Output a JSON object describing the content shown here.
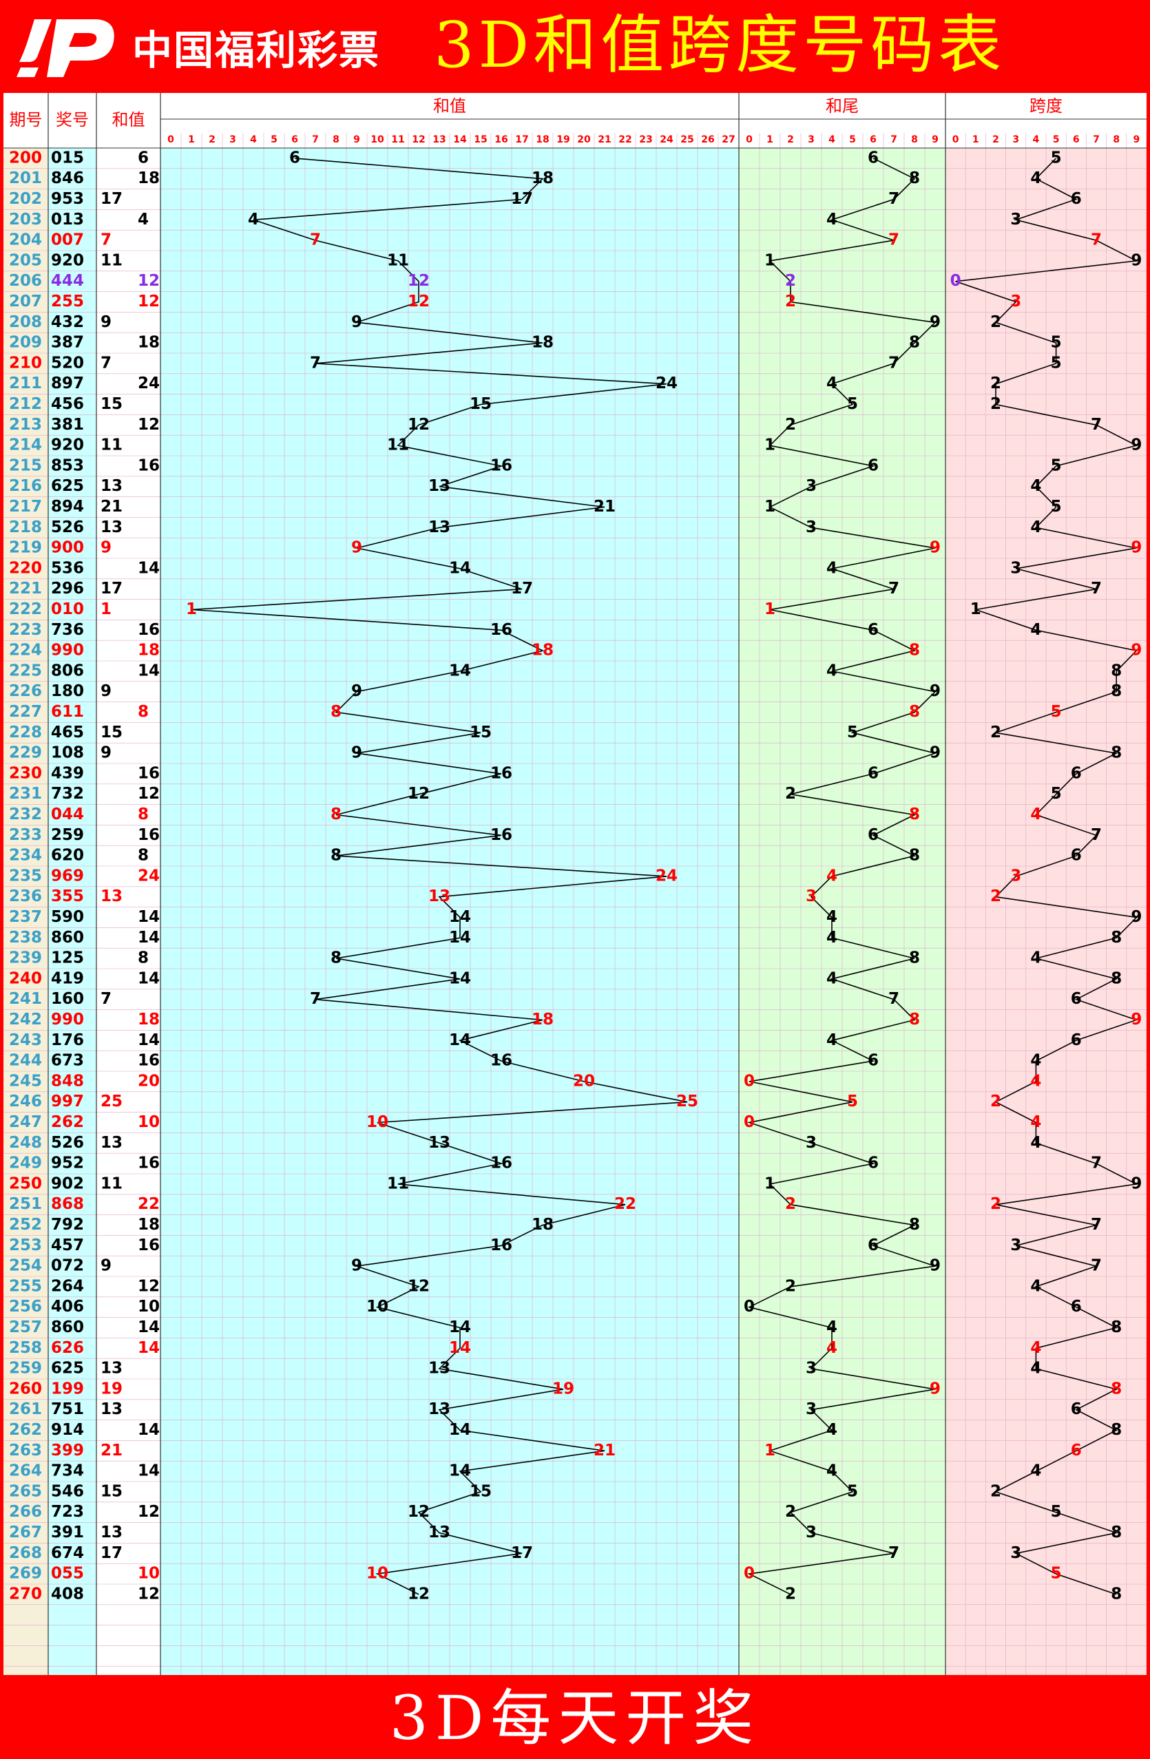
{
  "header": {
    "logo_text": "中国福利彩票",
    "title": "3D和值跨度号码表"
  },
  "footer": {
    "text": "3D每天开奖"
  },
  "table": {
    "col_period": "期号",
    "col_number": "奖号",
    "col_sum": "和值",
    "section_sum": "和值",
    "section_tail": "和尾",
    "section_span": "跨度"
  },
  "colors": {
    "header_bg": "#ff0000",
    "title_text": "#ffff00",
    "period_col_bg": "#f7f0d8",
    "number_col_bg": "#ccffff",
    "sum_area_bg": "#c8ffff",
    "tail_area_bg": "#dcffd8",
    "span_area_bg": "#ffe0e0",
    "highlight_red": "#ff0000",
    "highlight_purple": "#8a2be2",
    "period_blue": "#3aa0c8"
  },
  "chart_data": {
    "type": "table",
    "sum_axis": [
      0,
      27
    ],
    "tail_axis": [
      0,
      9
    ],
    "span_axis": [
      0,
      9
    ],
    "rows": [
      {
        "period": "200",
        "number": "015",
        "sum": 6,
        "tail": 6,
        "span": 5
      },
      {
        "period": "201",
        "number": "846",
        "sum": 18,
        "tail": 8,
        "span": 4
      },
      {
        "period": "202",
        "number": "953",
        "sum": 17,
        "tail": 7,
        "span": 6
      },
      {
        "period": "203",
        "number": "013",
        "sum": 4,
        "tail": 4,
        "span": 3
      },
      {
        "period": "204",
        "number": "007",
        "sum": 7,
        "tail": 7,
        "span": 7
      },
      {
        "period": "205",
        "number": "920",
        "sum": 11,
        "tail": 1,
        "span": 9
      },
      {
        "period": "206",
        "number": "444",
        "sum": 12,
        "tail": 2,
        "span": 0
      },
      {
        "period": "207",
        "number": "255",
        "sum": 12,
        "tail": 2,
        "span": 3
      },
      {
        "period": "208",
        "number": "432",
        "sum": 9,
        "tail": 9,
        "span": 2
      },
      {
        "period": "209",
        "number": "387",
        "sum": 18,
        "tail": 8,
        "span": 5
      },
      {
        "period": "210",
        "number": "520",
        "sum": 7,
        "tail": 7,
        "span": 5
      },
      {
        "period": "211",
        "number": "897",
        "sum": 24,
        "tail": 4,
        "span": 2
      },
      {
        "period": "212",
        "number": "456",
        "sum": 15,
        "tail": 5,
        "span": 2
      },
      {
        "period": "213",
        "number": "381",
        "sum": 12,
        "tail": 2,
        "span": 7
      },
      {
        "period": "214",
        "number": "920",
        "sum": 11,
        "tail": 1,
        "span": 9
      },
      {
        "period": "215",
        "number": "853",
        "sum": 16,
        "tail": 6,
        "span": 5
      },
      {
        "period": "216",
        "number": "625",
        "sum": 13,
        "tail": 3,
        "span": 4
      },
      {
        "period": "217",
        "number": "894",
        "sum": 21,
        "tail": 1,
        "span": 5
      },
      {
        "period": "218",
        "number": "526",
        "sum": 13,
        "tail": 3,
        "span": 4
      },
      {
        "period": "219",
        "number": "900",
        "sum": 9,
        "tail": 9,
        "span": 9
      },
      {
        "period": "220",
        "number": "536",
        "sum": 14,
        "tail": 4,
        "span": 3
      },
      {
        "period": "221",
        "number": "296",
        "sum": 17,
        "tail": 7,
        "span": 7
      },
      {
        "period": "222",
        "number": "010",
        "sum": 1,
        "tail": 1,
        "span": 1
      },
      {
        "period": "223",
        "number": "736",
        "sum": 16,
        "tail": 6,
        "span": 4
      },
      {
        "period": "224",
        "number": "990",
        "sum": 18,
        "tail": 8,
        "span": 9
      },
      {
        "period": "225",
        "number": "806",
        "sum": 14,
        "tail": 4,
        "span": 8
      },
      {
        "period": "226",
        "number": "180",
        "sum": 9,
        "tail": 9,
        "span": 8
      },
      {
        "period": "227",
        "number": "611",
        "sum": 8,
        "tail": 8,
        "span": 5
      },
      {
        "period": "228",
        "number": "465",
        "sum": 15,
        "tail": 5,
        "span": 2
      },
      {
        "period": "229",
        "number": "108",
        "sum": 9,
        "tail": 9,
        "span": 8
      },
      {
        "period": "230",
        "number": "439",
        "sum": 16,
        "tail": 6,
        "span": 6
      },
      {
        "period": "231",
        "number": "732",
        "sum": 12,
        "tail": 2,
        "span": 5
      },
      {
        "period": "232",
        "number": "044",
        "sum": 8,
        "tail": 8,
        "span": 4
      },
      {
        "period": "233",
        "number": "259",
        "sum": 16,
        "tail": 6,
        "span": 7
      },
      {
        "period": "234",
        "number": "620",
        "sum": 8,
        "tail": 8,
        "span": 6
      },
      {
        "period": "235",
        "number": "969",
        "sum": 24,
        "tail": 4,
        "span": 3
      },
      {
        "period": "236",
        "number": "355",
        "sum": 13,
        "tail": 3,
        "span": 2
      },
      {
        "period": "237",
        "number": "590",
        "sum": 14,
        "tail": 4,
        "span": 9
      },
      {
        "period": "238",
        "number": "860",
        "sum": 14,
        "tail": 4,
        "span": 8
      },
      {
        "period": "239",
        "number": "125",
        "sum": 8,
        "tail": 8,
        "span": 4
      },
      {
        "period": "240",
        "number": "419",
        "sum": 14,
        "tail": 4,
        "span": 8
      },
      {
        "period": "241",
        "number": "160",
        "sum": 7,
        "tail": 7,
        "span": 6
      },
      {
        "period": "242",
        "number": "990",
        "sum": 18,
        "tail": 8,
        "span": 9
      },
      {
        "period": "243",
        "number": "176",
        "sum": 14,
        "tail": 4,
        "span": 6
      },
      {
        "period": "244",
        "number": "673",
        "sum": 16,
        "tail": 6,
        "span": 4
      },
      {
        "period": "245",
        "number": "848",
        "sum": 20,
        "tail": 0,
        "span": 4
      },
      {
        "period": "246",
        "number": "997",
        "sum": 25,
        "tail": 5,
        "span": 2
      },
      {
        "period": "247",
        "number": "262",
        "sum": 10,
        "tail": 0,
        "span": 4
      },
      {
        "period": "248",
        "number": "526",
        "sum": 13,
        "tail": 3,
        "span": 4
      },
      {
        "period": "249",
        "number": "952",
        "sum": 16,
        "tail": 6,
        "span": 7
      },
      {
        "period": "250",
        "number": "902",
        "sum": 11,
        "tail": 1,
        "span": 9
      },
      {
        "period": "251",
        "number": "868",
        "sum": 22,
        "tail": 2,
        "span": 2
      },
      {
        "period": "252",
        "number": "792",
        "sum": 18,
        "tail": 8,
        "span": 7
      },
      {
        "period": "253",
        "number": "457",
        "sum": 16,
        "tail": 6,
        "span": 3
      },
      {
        "period": "254",
        "number": "072",
        "sum": 9,
        "tail": 9,
        "span": 7
      },
      {
        "period": "255",
        "number": "264",
        "sum": 12,
        "tail": 2,
        "span": 4
      },
      {
        "period": "256",
        "number": "406",
        "sum": 10,
        "tail": 0,
        "span": 6
      },
      {
        "period": "257",
        "number": "860",
        "sum": 14,
        "tail": 4,
        "span": 8
      },
      {
        "period": "258",
        "number": "626",
        "sum": 14,
        "tail": 4,
        "span": 4
      },
      {
        "period": "259",
        "number": "625",
        "sum": 13,
        "tail": 3,
        "span": 4
      },
      {
        "period": "260",
        "number": "199",
        "sum": 19,
        "tail": 9,
        "span": 8
      },
      {
        "period": "261",
        "number": "751",
        "sum": 13,
        "tail": 3,
        "span": 6
      },
      {
        "period": "262",
        "number": "914",
        "sum": 14,
        "tail": 4,
        "span": 8
      },
      {
        "period": "263",
        "number": "399",
        "sum": 21,
        "tail": 1,
        "span": 6
      },
      {
        "period": "264",
        "number": "734",
        "sum": 14,
        "tail": 4,
        "span": 4
      },
      {
        "period": "265",
        "number": "546",
        "sum": 15,
        "tail": 5,
        "span": 2
      },
      {
        "period": "266",
        "number": "723",
        "sum": 12,
        "tail": 2,
        "span": 5
      },
      {
        "period": "267",
        "number": "391",
        "sum": 13,
        "tail": 3,
        "span": 8
      },
      {
        "period": "268",
        "number": "674",
        "sum": 17,
        "tail": 7,
        "span": 3
      },
      {
        "period": "269",
        "number": "055",
        "sum": 10,
        "tail": 0,
        "span": 5
      },
      {
        "period": "270",
        "number": "408",
        "sum": 12,
        "tail": 2,
        "span": 8
      }
    ],
    "highlight_sum": [
      "204",
      "207",
      "219",
      "222",
      "224",
      "227",
      "232",
      "235",
      "236",
      "242",
      "245",
      "246",
      "247",
      "251",
      "258",
      "260",
      "263",
      "269"
    ],
    "highlight_tail": [
      "204",
      "207",
      "219",
      "222",
      "224",
      "227",
      "232",
      "235",
      "236",
      "242",
      "245",
      "246",
      "247",
      "251",
      "258",
      "260",
      "263",
      "269"
    ],
    "highlight_span": [
      "204",
      "207",
      "219",
      "224",
      "227",
      "232",
      "235",
      "236",
      "242",
      "245",
      "246",
      "247",
      "251",
      "258",
      "260",
      "263",
      "269"
    ],
    "highlight_purple": [
      "206"
    ],
    "highlight_period": [
      "200",
      "210",
      "220",
      "230",
      "240",
      "250",
      "260",
      "270"
    ]
  }
}
